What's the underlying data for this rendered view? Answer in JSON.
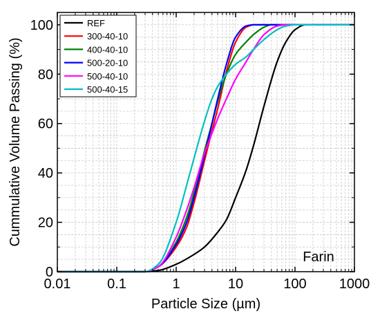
{
  "chart_data": {
    "type": "line",
    "x_scale": "log",
    "xlim": [
      0.01,
      1000
    ],
    "ylim": [
      0,
      105
    ],
    "xlabel": "Particle Size (µm)",
    "ylabel": "Cummulative Volume Passing (%)",
    "x_ticks": [
      "0.01",
      "0.1",
      "1",
      "10",
      "100",
      "1000"
    ],
    "y_ticks": [
      "0",
      "20",
      "40",
      "60",
      "80",
      "100"
    ],
    "grid": "dashed-minor",
    "legend_position": "top-left",
    "annotation": "Farin",
    "series": [
      {
        "name": "REF",
        "color": "#000000",
        "x": [
          0.01,
          0.3,
          0.5,
          1,
          2,
          3,
          5,
          7,
          10,
          15,
          20,
          30,
          50,
          70,
          100,
          150,
          200,
          1000
        ],
        "y": [
          0,
          0,
          0.5,
          3,
          7,
          10,
          16,
          21,
          30,
          41,
          51,
          67,
          85,
          93,
          98,
          100,
          100,
          100
        ]
      },
      {
        "name": "300-40-10",
        "color": "#ff0000",
        "x": [
          0.01,
          0.3,
          0.5,
          1,
          1.5,
          2,
          3,
          4,
          5,
          7,
          10,
          15,
          20,
          30,
          40,
          1000
        ],
        "y": [
          0,
          0,
          2,
          10,
          18,
          28,
          45,
          57,
          66,
          81,
          93,
          99,
          100,
          100,
          100,
          100
        ]
      },
      {
        "name": "400-40-10",
        "color": "#008000",
        "x": [
          0.01,
          0.3,
          0.5,
          1,
          1.5,
          2,
          3,
          4,
          5,
          7,
          10,
          15,
          20,
          30,
          40,
          60,
          1000
        ],
        "y": [
          0,
          0,
          2,
          12,
          22,
          32,
          49,
          60,
          69,
          80,
          88,
          93,
          96,
          99,
          100,
          100,
          100
        ]
      },
      {
        "name": "500-20-10",
        "color": "#0000ff",
        "x": [
          0.01,
          0.3,
          0.5,
          1,
          1.5,
          2,
          3,
          4,
          5,
          7,
          10,
          15,
          20,
          30,
          1000
        ],
        "y": [
          0,
          0,
          2,
          11,
          20,
          30,
          47,
          60,
          70,
          84,
          95,
          99.5,
          100,
          100,
          100
        ]
      },
      {
        "name": "500-40-10",
        "color": "#ff00ff",
        "x": [
          0.01,
          0.3,
          0.5,
          1,
          1.5,
          2,
          3,
          4,
          5,
          7,
          10,
          15,
          20,
          30,
          50,
          70,
          1000
        ],
        "y": [
          0,
          0,
          2,
          14,
          25,
          34,
          48,
          56,
          62,
          70,
          78,
          85,
          90,
          96,
          99.5,
          100,
          100
        ]
      },
      {
        "name": "500-40-15",
        "color": "#00c0c0",
        "x": [
          0.01,
          0.3,
          0.5,
          1,
          1.5,
          2,
          3,
          4,
          5,
          7,
          10,
          15,
          20,
          30,
          50,
          70,
          100,
          1000
        ],
        "y": [
          0,
          0,
          3,
          20,
          35,
          46,
          61,
          70,
          75,
          80,
          84,
          87,
          90,
          94,
          98,
          99.5,
          100,
          100
        ]
      }
    ]
  }
}
